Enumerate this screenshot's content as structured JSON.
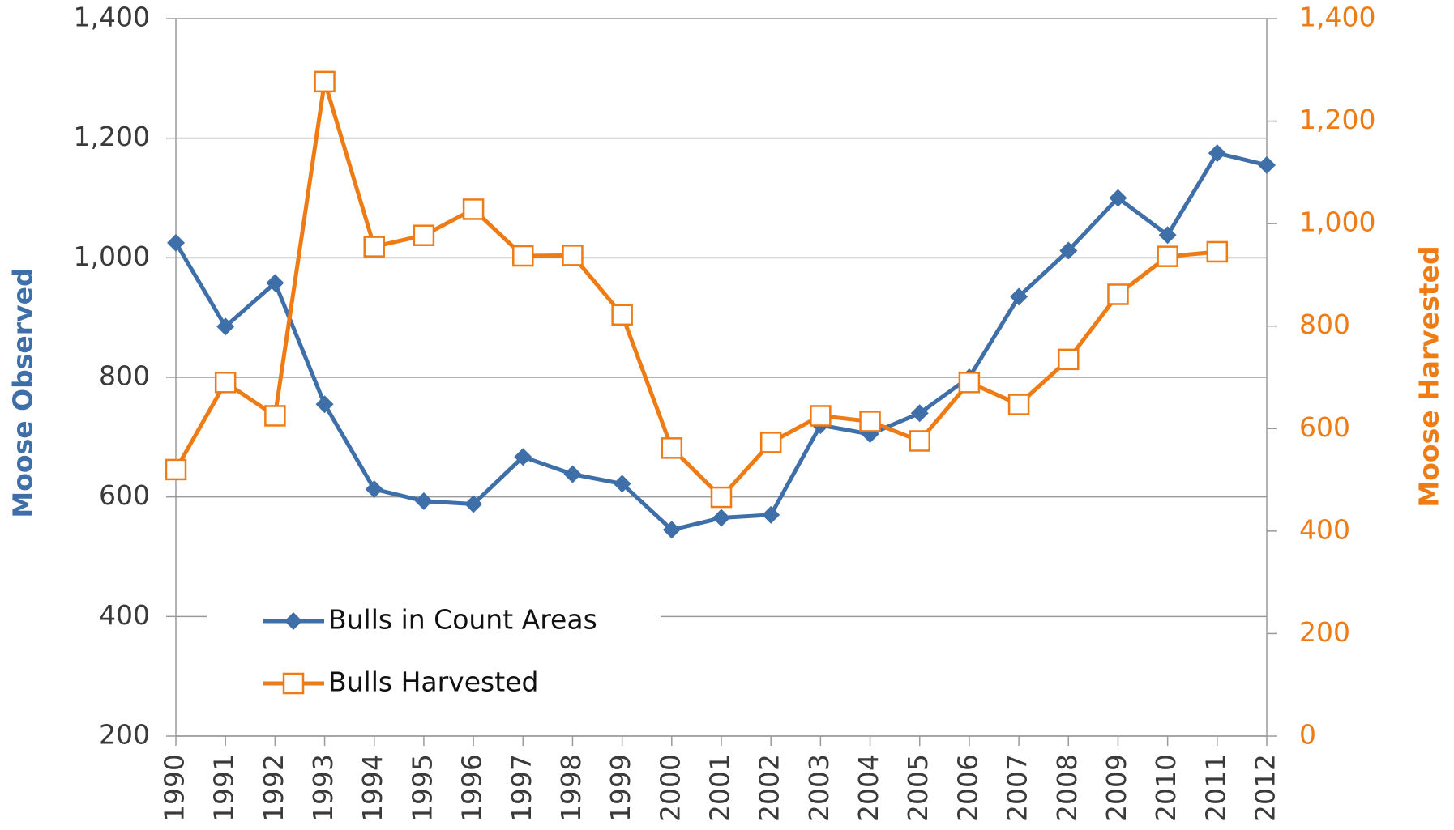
{
  "chart_data": {
    "type": "line",
    "categories": [
      "1990",
      "1991",
      "1992",
      "1993",
      "1994",
      "1995",
      "1996",
      "1997",
      "1998",
      "1999",
      "2000",
      "2001",
      "2002",
      "2003",
      "2004",
      "2005",
      "2006",
      "2007",
      "2008",
      "2009",
      "2010",
      "2011",
      "2012"
    ],
    "series": [
      {
        "name": "Bulls in Count Areas",
        "color": "#3f6fa8",
        "marker": "diamond",
        "values": [
          1025,
          885,
          958,
          755,
          613,
          593,
          588,
          667,
          638,
          622,
          545,
          565,
          570,
          720,
          705,
          740,
          800,
          935,
          1012,
          1100,
          1038,
          1175,
          1155
        ]
      },
      {
        "name": "Bulls Harvested",
        "color": "#ee7b14",
        "marker": "open-square",
        "axis": "y2",
        "values": [
          520,
          690,
          625,
          1277,
          955,
          977,
          1028,
          937,
          938,
          822,
          562,
          466,
          573,
          625,
          614,
          576,
          690,
          647,
          735,
          862,
          936,
          945,
          null
        ]
      }
    ],
    "ylabel": "Moose Observed",
    "y2label": "Moose Harvested",
    "ylim": [
      200,
      1400
    ],
    "yticks": [
      200,
      400,
      600,
      800,
      {
        "value": 1000,
        "label": "1,000"
      },
      {
        "value": 1200,
        "label": "1,200"
      },
      {
        "value": 1400,
        "label": "1,400"
      }
    ],
    "y2lim": [
      0,
      1400
    ],
    "y2ticks": [
      0,
      200,
      400,
      600,
      800,
      {
        "value": 1000,
        "label": "1,000"
      },
      {
        "value": 1200,
        "label": "1,200"
      },
      {
        "value": 1400,
        "label": "1,400"
      }
    ],
    "grid": true,
    "legend": "lower left"
  }
}
